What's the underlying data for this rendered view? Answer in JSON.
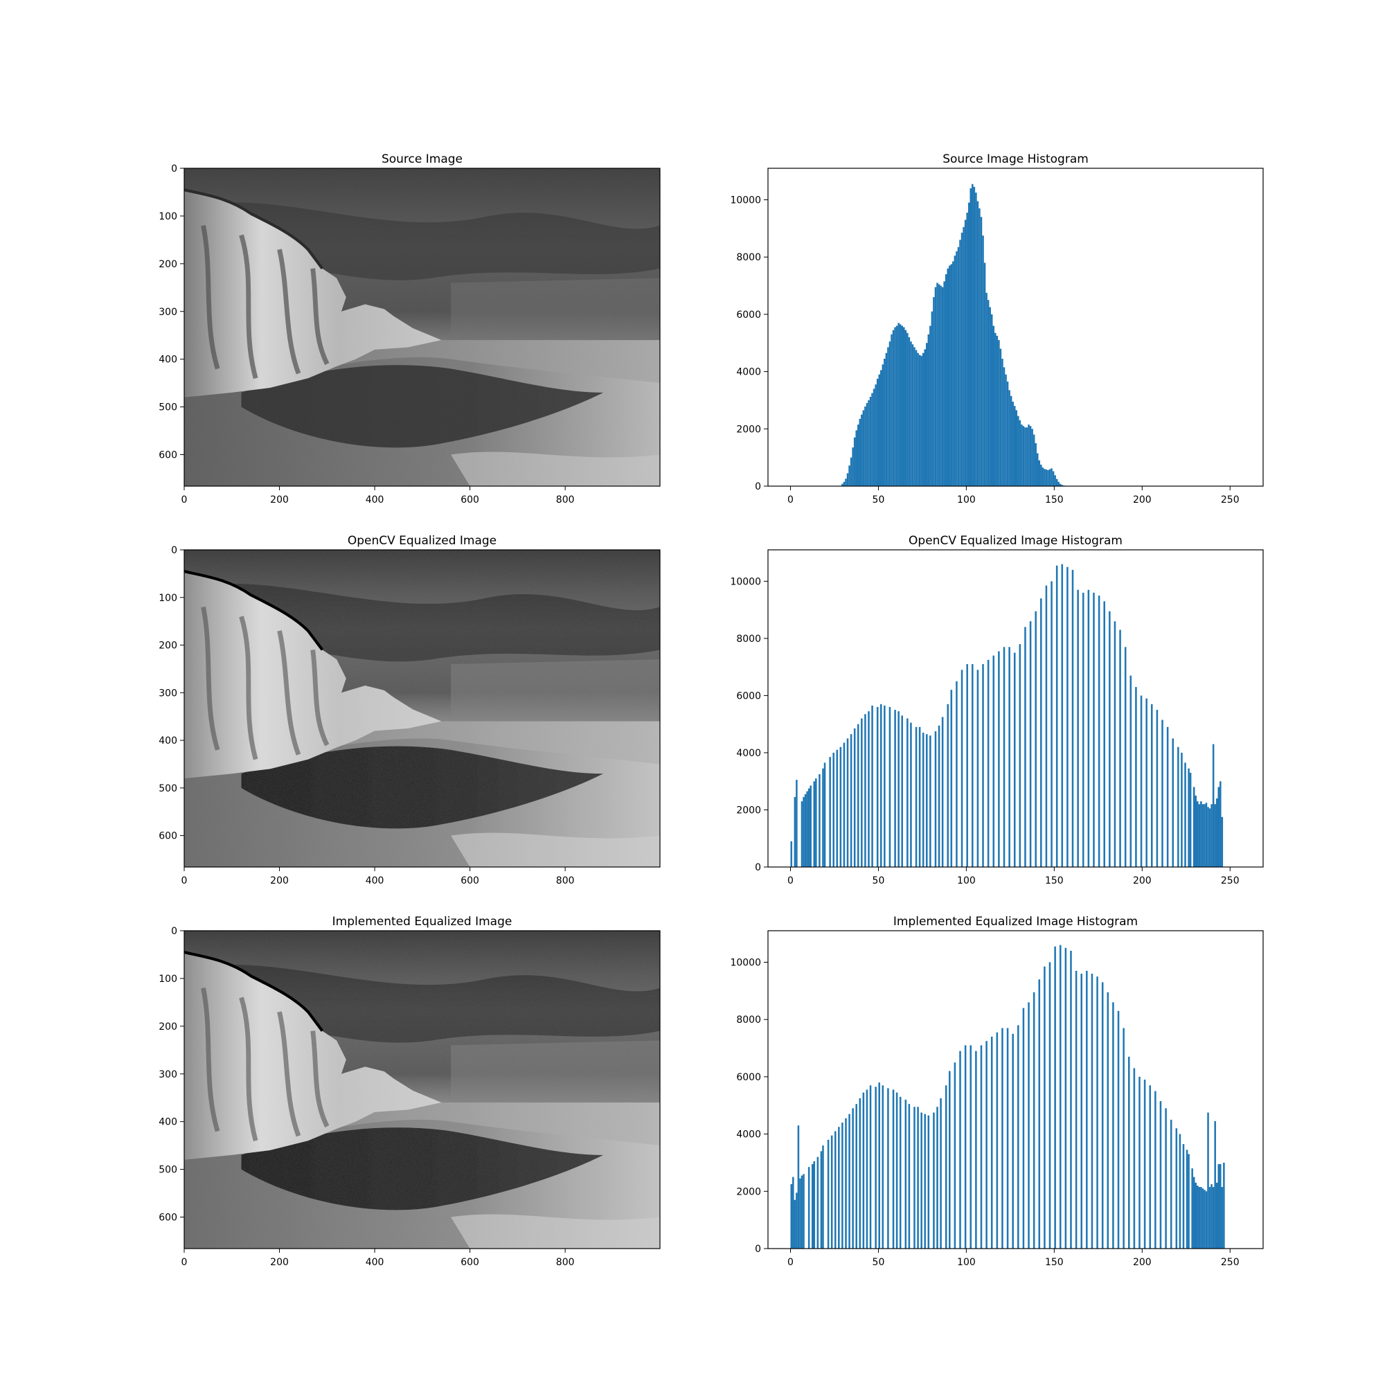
{
  "figure": {
    "background": "#ffffff",
    "bar_color": "#1f77b4"
  },
  "chart_data": [
    {
      "type": "image",
      "title": "Source Image",
      "xlim": [
        0,
        999
      ],
      "ylim": [
        666,
        0
      ],
      "xticks": [
        0,
        200,
        400,
        600,
        800
      ],
      "yticks": [
        0,
        100,
        200,
        300,
        400,
        500,
        600
      ],
      "image_content": "grayscale-photo-chalk-cliffs-beach-cloudy-sky",
      "contrast": "source",
      "brightness": 1.0,
      "gamma": 1.0
    },
    {
      "type": "bar",
      "title": "Source Image Histogram",
      "xlim": [
        -12.8,
        268.8
      ],
      "ylim": [
        0,
        11100
      ],
      "xticks": [
        0,
        50,
        100,
        150,
        200,
        250
      ],
      "yticks": [
        0,
        2000,
        4000,
        6000,
        8000,
        10000
      ],
      "grid": false,
      "bar_width": 1,
      "x_start": 0,
      "values": [
        0,
        0,
        0,
        0,
        0,
        0,
        0,
        0,
        0,
        0,
        0,
        0,
        0,
        0,
        0,
        0,
        0,
        0,
        0,
        0,
        0,
        0,
        0,
        0,
        0,
        0,
        0,
        0,
        0,
        80,
        150,
        260,
        450,
        720,
        1000,
        1350,
        1700,
        1950,
        2150,
        2350,
        2500,
        2650,
        2780,
        2900,
        3000,
        3120,
        3250,
        3400,
        3550,
        3750,
        3900,
        4050,
        4250,
        4450,
        4650,
        4850,
        5050,
        5300,
        5450,
        5550,
        5600,
        5700,
        5650,
        5600,
        5550,
        5450,
        5350,
        5200,
        5050,
        4950,
        4850,
        4750,
        4650,
        4580,
        4550,
        4650,
        4780,
        5000,
        5300,
        5600,
        6100,
        6600,
        6950,
        7100,
        7050,
        7000,
        6950,
        7150,
        7400,
        7600,
        7700,
        7750,
        7850,
        8050,
        8200,
        8350,
        8600,
        8850,
        9050,
        9300,
        9550,
        9900,
        10400,
        10550,
        10450,
        10250,
        9950,
        9700,
        9400,
        8750,
        7800,
        6750,
        6500,
        6250,
        6000,
        5600,
        5350,
        5250,
        5100,
        4800,
        4450,
        4150,
        3900,
        3650,
        3350,
        3150,
        2950,
        2800,
        2650,
        2450,
        2300,
        2150,
        2100,
        2050,
        2050,
        2150,
        2100,
        2000,
        1800,
        1500,
        1150,
        900,
        750,
        650,
        600,
        580,
        560,
        590,
        620,
        520,
        380,
        250,
        150,
        80,
        40,
        20,
        0,
        0,
        0,
        0,
        0,
        0,
        0,
        0,
        0,
        0,
        0,
        0,
        0,
        0,
        0,
        0,
        0,
        0,
        0,
        0,
        0,
        0,
        0,
        0,
        0,
        0,
        0,
        0,
        0,
        0,
        0,
        0,
        0,
        0,
        0,
        0,
        0,
        0,
        0,
        0,
        0,
        0,
        0,
        0,
        0,
        0,
        0,
        0,
        0,
        0,
        0,
        0,
        0,
        0,
        0,
        0,
        0,
        0,
        0,
        0,
        0,
        0,
        0,
        0,
        0,
        0,
        0,
        0,
        0,
        0,
        0,
        0,
        0,
        0,
        0,
        0,
        0,
        0,
        0,
        0,
        0,
        0,
        0,
        0,
        0,
        0,
        0,
        0,
        0,
        0,
        0,
        0,
        0,
        0,
        0,
        0,
        0,
        0,
        0,
        0,
        0,
        0,
        0,
        0,
        0,
        0,
        0,
        0,
        0,
        0
      ]
    },
    {
      "type": "image",
      "title": "OpenCV Equalized Image",
      "xlim": [
        0,
        999
      ],
      "ylim": [
        666,
        0
      ],
      "xticks": [
        0,
        200,
        400,
        600,
        800
      ],
      "yticks": [
        0,
        100,
        200,
        300,
        400,
        500,
        600
      ],
      "image_content": "grayscale-photo-chalk-cliffs-beach-cloudy-sky",
      "contrast": "equalized",
      "brightness": 1.05,
      "gamma": 1.6
    },
    {
      "type": "bar",
      "title": "OpenCV Equalized Image Histogram",
      "xlim": [
        -12.8,
        268.8
      ],
      "ylim": [
        0,
        11100
      ],
      "xticks": [
        0,
        50,
        100,
        150,
        200,
        250
      ],
      "yticks": [
        0,
        2000,
        4000,
        6000,
        8000,
        10000
      ],
      "grid": false,
      "bar_width": 1,
      "x_start": 0,
      "values": [
        900,
        0,
        2450,
        3050,
        0,
        0,
        2300,
        2450,
        2550,
        2650,
        2750,
        2850,
        0,
        3000,
        3100,
        0,
        3250,
        0,
        3450,
        3650,
        0,
        0,
        3850,
        0,
        4000,
        0,
        4100,
        0,
        4200,
        0,
        4350,
        0,
        4500,
        0,
        4650,
        0,
        4850,
        0,
        5000,
        0,
        5200,
        0,
        5350,
        0,
        5450,
        0,
        5650,
        0,
        0,
        5600,
        0,
        5700,
        0,
        5650,
        0,
        0,
        5600,
        0,
        0,
        5500,
        0,
        5450,
        0,
        5300,
        0,
        0,
        5200,
        0,
        5050,
        0,
        0,
        4900,
        0,
        4900,
        0,
        4700,
        0,
        4650,
        0,
        4600,
        0,
        0,
        4750,
        0,
        4950,
        0,
        5250,
        0,
        0,
        5700,
        0,
        6200,
        0,
        0,
        6500,
        0,
        0,
        6900,
        0,
        0,
        7100,
        0,
        0,
        7100,
        0,
        0,
        6900,
        0,
        0,
        7100,
        0,
        0,
        7250,
        0,
        0,
        7400,
        0,
        0,
        7550,
        0,
        0,
        7700,
        0,
        0,
        7700,
        0,
        0,
        7500,
        0,
        0,
        7800,
        0,
        0,
        8400,
        0,
        0,
        8600,
        0,
        0,
        8950,
        0,
        0,
        9400,
        0,
        0,
        9850,
        0,
        0,
        10000,
        0,
        0,
        10550,
        0,
        0,
        10600,
        0,
        0,
        10500,
        0,
        0,
        10400,
        0,
        0,
        9700,
        0,
        0,
        9600,
        0,
        0,
        9700,
        0,
        0,
        9600,
        0,
        0,
        9500,
        0,
        0,
        9300,
        0,
        0,
        8950,
        0,
        0,
        8600,
        0,
        0,
        8300,
        0,
        0,
        7700,
        0,
        0,
        6700,
        0,
        0,
        6300,
        0,
        0,
        6000,
        0,
        0,
        5900,
        0,
        0,
        5700,
        0,
        0,
        5500,
        0,
        0,
        5150,
        0,
        0,
        4900,
        0,
        0,
        4500,
        0,
        0,
        4200,
        0,
        4000,
        0,
        3650,
        0,
        3450,
        3300,
        0,
        2800,
        2500,
        2300,
        2200,
        2300,
        2200,
        2200,
        2250,
        2100,
        2050,
        2200,
        4300,
        2200,
        2400,
        2800,
        3000,
        1750
      ]
    },
    {
      "type": "image",
      "title": "Implemented Equalized Image",
      "xlim": [
        0,
        999
      ],
      "ylim": [
        666,
        0
      ],
      "xticks": [
        0,
        200,
        400,
        600,
        800
      ],
      "yticks": [
        0,
        100,
        200,
        300,
        400,
        500,
        600
      ],
      "image_content": "grayscale-photo-chalk-cliffs-beach-cloudy-sky",
      "contrast": "equalized",
      "brightness": 1.05,
      "gamma": 1.6
    },
    {
      "type": "bar",
      "title": "Implemented Equalized Image Histogram",
      "xlim": [
        -12.8,
        268.8
      ],
      "ylim": [
        0,
        11100
      ],
      "xticks": [
        0,
        50,
        100,
        150,
        200,
        250
      ],
      "yticks": [
        0,
        2000,
        4000,
        6000,
        8000,
        10000
      ],
      "grid": false,
      "bar_width": 1,
      "x_start": 0,
      "values": [
        2250,
        2500,
        1700,
        1950,
        4300,
        2450,
        2550,
        2600,
        0,
        0,
        2850,
        0,
        2950,
        3050,
        0,
        3200,
        0,
        3400,
        3600,
        0,
        0,
        3800,
        0,
        3950,
        0,
        4100,
        0,
        4250,
        0,
        4400,
        0,
        4550,
        0,
        4700,
        0,
        4900,
        0,
        5050,
        0,
        5250,
        0,
        5450,
        0,
        5550,
        0,
        5700,
        0,
        0,
        5650,
        0,
        5800,
        0,
        5700,
        0,
        0,
        5600,
        0,
        0,
        5550,
        0,
        5450,
        0,
        5300,
        0,
        0,
        5200,
        0,
        5050,
        0,
        0,
        4950,
        0,
        4950,
        0,
        4750,
        0,
        4700,
        0,
        4650,
        0,
        0,
        4750,
        0,
        4950,
        0,
        5250,
        0,
        0,
        5700,
        0,
        6200,
        0,
        0,
        6500,
        0,
        0,
        6900,
        0,
        0,
        7100,
        0,
        0,
        7100,
        0,
        0,
        6900,
        0,
        0,
        7100,
        0,
        0,
        7250,
        0,
        0,
        7400,
        0,
        0,
        7550,
        0,
        0,
        7700,
        0,
        0,
        7700,
        0,
        0,
        7500,
        0,
        0,
        7800,
        0,
        0,
        8400,
        0,
        0,
        8600,
        0,
        0,
        8950,
        0,
        0,
        9400,
        0,
        0,
        9850,
        0,
        0,
        10000,
        0,
        0,
        10550,
        0,
        0,
        10600,
        0,
        0,
        10500,
        0,
        0,
        10400,
        0,
        0,
        9700,
        0,
        0,
        9600,
        0,
        0,
        9700,
        0,
        0,
        9600,
        0,
        0,
        9500,
        0,
        0,
        9300,
        0,
        0,
        8950,
        0,
        0,
        8600,
        0,
        0,
        8300,
        0,
        0,
        7700,
        0,
        0,
        6700,
        0,
        0,
        6300,
        0,
        0,
        6000,
        0,
        0,
        5900,
        0,
        0,
        5700,
        0,
        0,
        5500,
        0,
        0,
        5150,
        0,
        0,
        4900,
        0,
        0,
        4500,
        0,
        0,
        4200,
        0,
        4000,
        0,
        3650,
        0,
        3450,
        3300,
        0,
        2800,
        2500,
        2300,
        2200,
        2150,
        2150,
        2100,
        2050,
        2000,
        4750,
        2150,
        2250,
        2150,
        4450,
        2300,
        2950,
        2950,
        2150,
        3000
      ]
    }
  ]
}
